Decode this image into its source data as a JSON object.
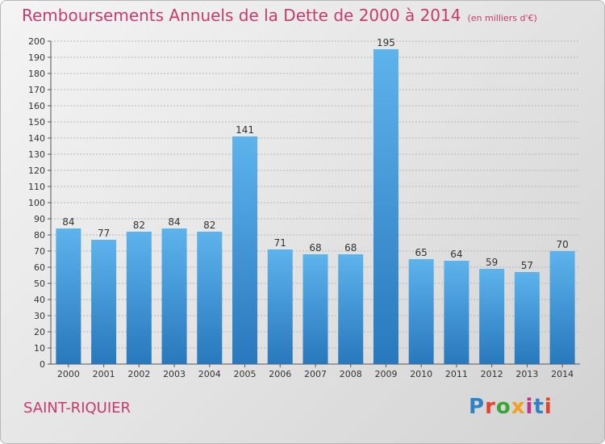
{
  "header": {
    "title": "Remboursements Annuels de la Dette de 2000 à 2014",
    "unit": "(en milliers d'€)"
  },
  "footer": {
    "commune": "SAINT-RIQUIER",
    "logo_text": "Proxiti",
    "logo_colors": [
      "#2e83c6",
      "#e8412c",
      "#3aa535",
      "#f2a020",
      "#c2328a",
      "#2e83c6",
      "#e8412c"
    ]
  },
  "colors": {
    "bar_top": "#5db3ec",
    "bar_bottom": "#2878bd",
    "title": "#c83a6e",
    "grid": "#b8b8b8",
    "text": "#333333"
  },
  "chart_data": {
    "type": "bar",
    "title": "Remboursements Annuels de la Dette de 2000 à 2014",
    "subtitle": "(en milliers d'€)",
    "xlabel": "",
    "ylabel": "",
    "categories": [
      "2000",
      "2001",
      "2002",
      "2003",
      "2004",
      "2005",
      "2006",
      "2007",
      "2008",
      "2009",
      "2010",
      "2011",
      "2012",
      "2013",
      "2014"
    ],
    "values": [
      84,
      77,
      82,
      84,
      82,
      141,
      71,
      68,
      68,
      195,
      65,
      64,
      59,
      57,
      70
    ],
    "ylim": [
      0,
      200
    ],
    "ytick_step": 10,
    "grid": true,
    "legend": "none"
  }
}
